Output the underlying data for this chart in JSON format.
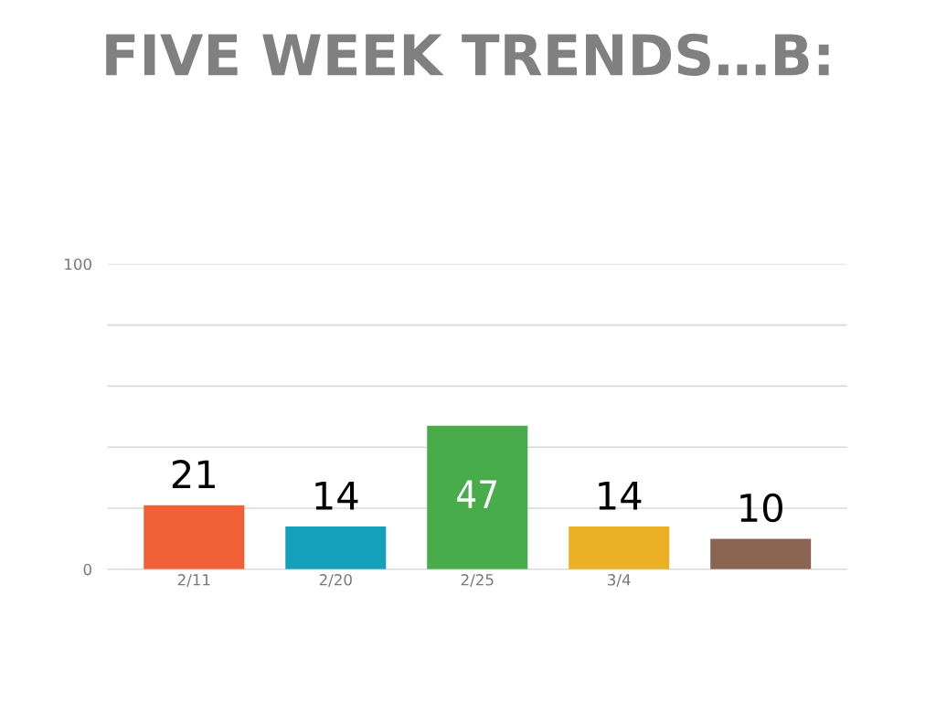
{
  "chart_data": {
    "type": "bar",
    "title": "FIVE WEEK TRENDS…B:",
    "categories": [
      "2/11",
      "2/20",
      "2/25",
      "3/4",
      null
    ],
    "values": [
      21,
      14,
      47,
      14,
      10
    ],
    "colors": [
      "#f05f35",
      "#149fbb",
      "#48ac4a",
      "#ebb026",
      "#8b6552"
    ],
    "ylim": [
      0,
      100
    ],
    "yticks": [
      0,
      {
        "value": 20,
        "label": null
      },
      {
        "value": 40,
        "label": null
      },
      {
        "value": 60,
        "label": null
      },
      {
        "value": 80,
        "label": null
      },
      100
    ],
    "grid": "y",
    "data_labels": true
  }
}
